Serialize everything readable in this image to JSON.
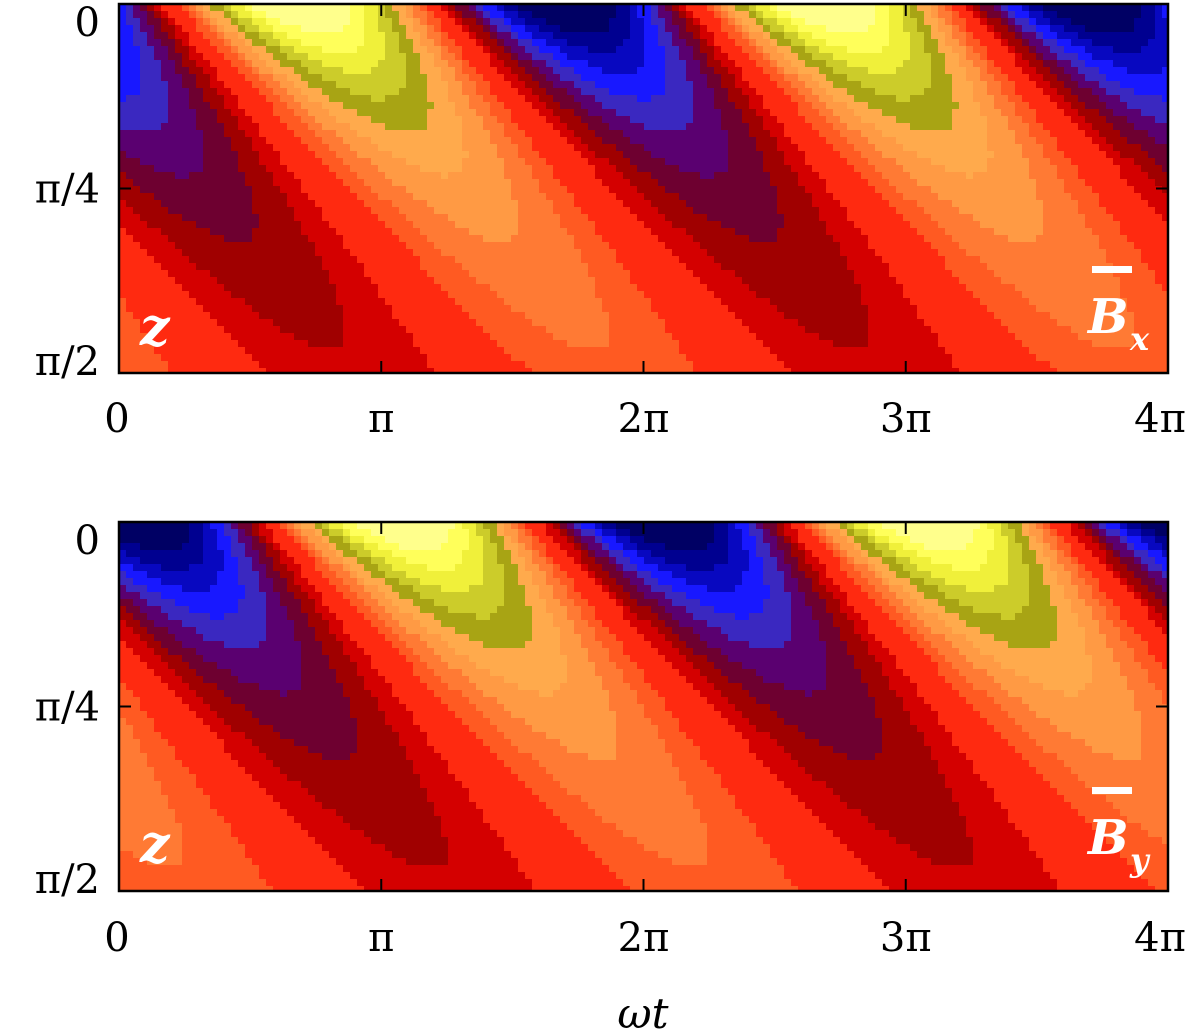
{
  "chart_data": [
    {
      "type": "heatmap",
      "title": "",
      "xlabel": "",
      "ylabel": "",
      "field_label": "B",
      "field_component": "x",
      "depth_label": "z",
      "x_ticks": [
        "0",
        "π",
        "2π",
        "3π",
        "4π"
      ],
      "x_tick_values": [
        0,
        3.14159,
        6.28319,
        9.42478,
        12.56637
      ],
      "y_ticks": [
        "0",
        "π/4",
        "π/2"
      ],
      "y_tick_values": [
        0,
        0.785398,
        1.570796
      ],
      "xlim": [
        0,
        12.56637
      ],
      "ylim": [
        0,
        1.570796
      ],
      "y_inverted": true,
      "phase": 0.0,
      "contour_levels": 14
    },
    {
      "type": "heatmap",
      "title": "",
      "xlabel": "ωt",
      "ylabel": "",
      "field_label": "B",
      "field_component": "y",
      "depth_label": "z",
      "x_ticks": [
        "0",
        "π",
        "2π",
        "3π",
        "4π"
      ],
      "x_tick_values": [
        0,
        3.14159,
        6.28319,
        9.42478,
        12.56637
      ],
      "y_ticks": [
        "0",
        "π/4",
        "π/2"
      ],
      "y_tick_values": [
        0,
        0.785398,
        1.570796
      ],
      "xlim": [
        0,
        12.56637
      ],
      "ylim": [
        0,
        1.570796
      ],
      "y_inverted": true,
      "phase": 1.0,
      "contour_levels": 14
    }
  ],
  "colormap": [
    "#ff1e0d",
    "#ff3e16",
    "#ff6a2a",
    "#ff8f3f",
    "#ffb04f",
    "#d6ba2a",
    "#a8a414",
    "#dede30",
    "#ffff40",
    "#ffff90",
    "#ffff9e",
    "#c80000",
    "#8c0000",
    "#580040",
    "#600080",
    "#3c30d0",
    "#0c0cff",
    "#0000b4",
    "#000070"
  ]
}
